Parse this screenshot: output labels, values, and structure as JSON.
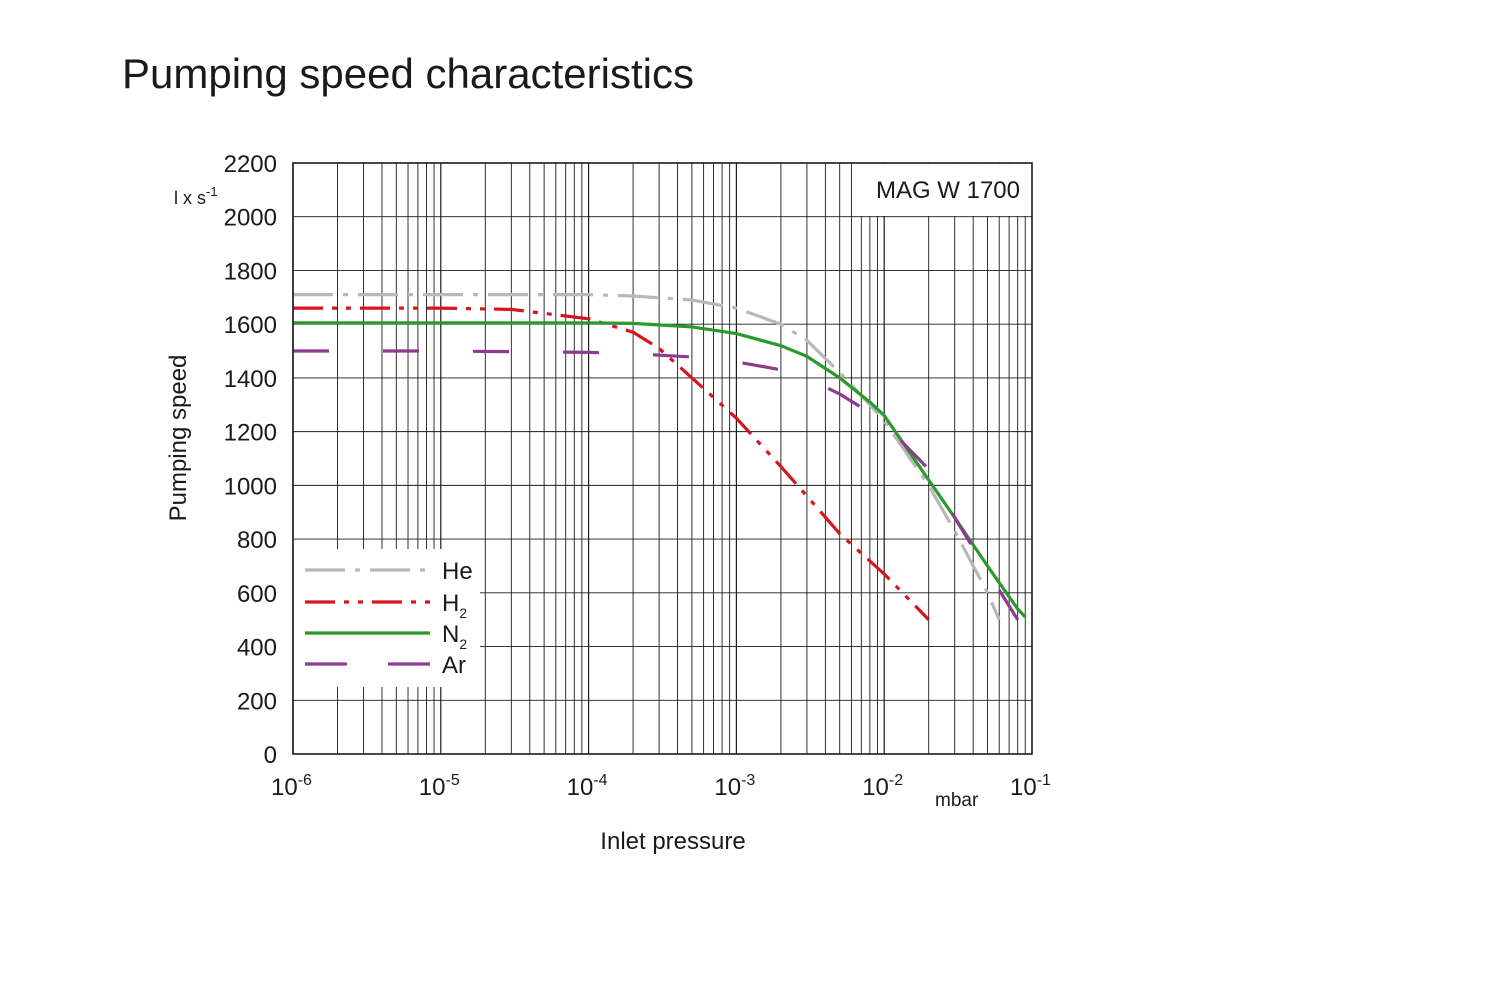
{
  "chart_data": {
    "type": "line",
    "title": "Pumping speed characteristics",
    "model_label": "MAG W 1700",
    "xlabel": "Inlet pressure",
    "x_unit": "mbar",
    "ylabel": "Pumping speed",
    "y_unit_base": "l x s",
    "y_unit_exp": "-1",
    "x_scale": "log",
    "xlim": [
      1e-06,
      0.1
    ],
    "ylim": [
      0,
      2200
    ],
    "yticks": [
      "0",
      "200",
      "400",
      "600",
      "800",
      "1000",
      "1200",
      "1400",
      "1600",
      "1800",
      "2000",
      "2200"
    ],
    "xticks": [
      {
        "base": "10",
        "exp": "-6"
      },
      {
        "base": "10",
        "exp": "-5"
      },
      {
        "base": "10",
        "exp": "-4"
      },
      {
        "base": "10",
        "exp": "-3"
      },
      {
        "base": "10",
        "exp": "-2"
      },
      {
        "base": "10",
        "exp": "-1"
      }
    ],
    "grid": true,
    "legend_position": "bottom-left",
    "series": [
      {
        "name": "He",
        "name_sub": "",
        "color": "#b8b8b8",
        "dash": "dash-dot",
        "x": [
          1e-06,
          1e-05,
          0.0001,
          0.0002,
          0.0005,
          0.001,
          0.002,
          0.003,
          0.005,
          0.008,
          0.01,
          0.02,
          0.03,
          0.05,
          0.06
        ],
        "y": [
          1710,
          1710,
          1710,
          1705,
          1690,
          1660,
          1600,
          1540,
          1420,
          1300,
          1240,
          1000,
          830,
          600,
          500
        ]
      },
      {
        "name": "H",
        "name_sub": "2",
        "color": "#d8141e",
        "dash": "dash-dot-dot",
        "x": [
          1e-06,
          1e-05,
          3e-05,
          0.0001,
          0.0002,
          0.0003,
          0.0005,
          0.001,
          0.002,
          0.003,
          0.005,
          0.01,
          0.02
        ],
        "y": [
          1660,
          1660,
          1655,
          1620,
          1570,
          1510,
          1400,
          1250,
          1070,
          960,
          820,
          670,
          500
        ]
      },
      {
        "name": "N",
        "name_sub": "2",
        "color": "#2a9a2a",
        "dash": "solid",
        "x": [
          1e-06,
          1e-05,
          0.0001,
          0.0002,
          0.0005,
          0.001,
          0.002,
          0.003,
          0.005,
          0.008,
          0.01,
          0.02,
          0.03,
          0.05,
          0.08,
          0.09
        ],
        "y": [
          1605,
          1605,
          1605,
          1603,
          1590,
          1565,
          1520,
          1480,
          1400,
          1310,
          1260,
          1020,
          880,
          700,
          540,
          510
        ]
      },
      {
        "name": "Ar",
        "name_sub": "",
        "color": "#8e3a8e",
        "dash": "long-dash",
        "x": [
          1e-06,
          1e-05,
          0.0001,
          0.0002,
          0.0005,
          0.001,
          0.002,
          0.003,
          0.005,
          0.008,
          0.01,
          0.02,
          0.03,
          0.05,
          0.08
        ],
        "y": [
          1500,
          1500,
          1495,
          1490,
          1478,
          1460,
          1430,
          1400,
          1340,
          1270,
          1230,
          1060,
          880,
          680,
          500
        ]
      }
    ]
  }
}
